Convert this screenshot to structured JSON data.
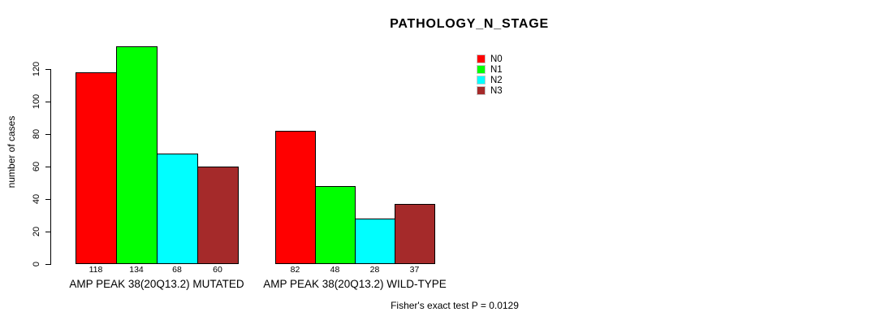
{
  "chart_data": {
    "type": "bar",
    "title": "PATHOLOGY_N_STAGE",
    "ylabel": "number of cases",
    "xlabel": "",
    "annotation": "Fisher's exact test P = 0.0129",
    "yticks": [
      0,
      20,
      40,
      60,
      80,
      100,
      120
    ],
    "ylim": [
      0,
      134
    ],
    "grid": false,
    "legend_position": "top-right",
    "series_names": [
      "N0",
      "N1",
      "N2",
      "N3"
    ],
    "colors": [
      "#ff0000",
      "#00ff00",
      "#00ffff",
      "#a52a2a"
    ],
    "groups": [
      {
        "label": "AMP PEAK 38(20Q13.2) MUTATED",
        "values": [
          118,
          134,
          68,
          60
        ]
      },
      {
        "label": "AMP PEAK 38(20Q13.2) WILD-TYPE",
        "values": [
          82,
          48,
          28,
          37
        ]
      }
    ],
    "legend": [
      {
        "label": "N0",
        "color": "#ff0000"
      },
      {
        "label": "N1",
        "color": "#00ff00"
      },
      {
        "label": "N2",
        "color": "#00ffff"
      },
      {
        "label": "N3",
        "color": "#a52a2a"
      }
    ]
  }
}
